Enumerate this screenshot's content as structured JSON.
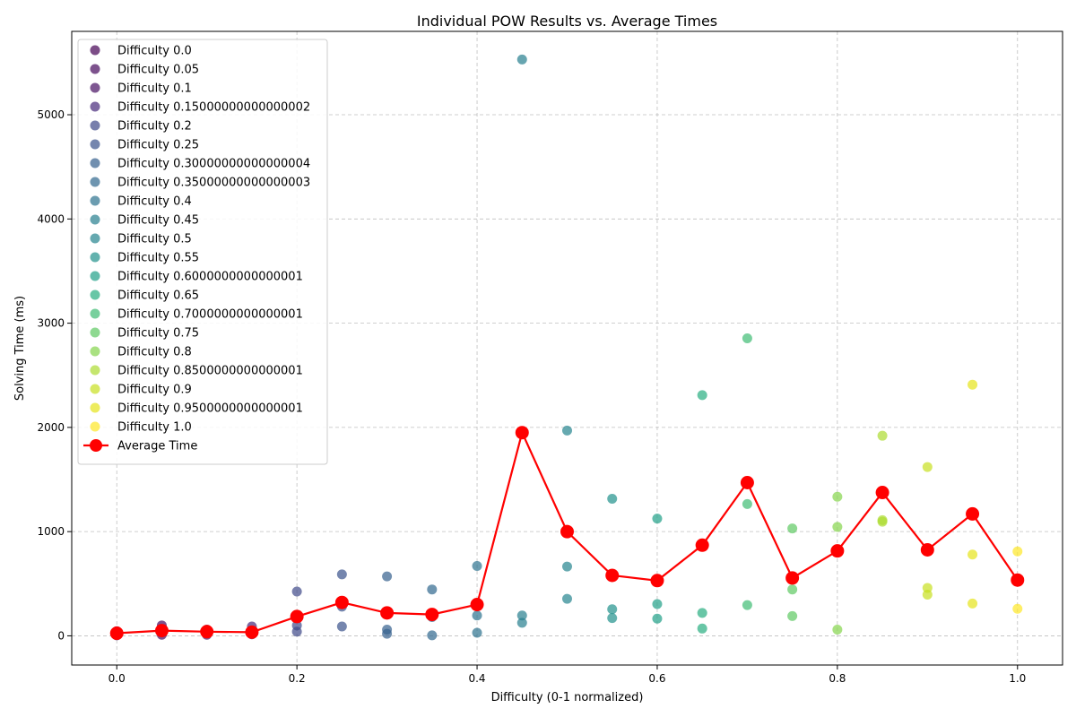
{
  "chart_data": {
    "type": "scatter",
    "title": "Individual POW Results vs. Average Times",
    "xlabel": "Difficulty (0-1 normalized)",
    "ylabel": "Solving Time (ms)",
    "xlim": [
      -0.05,
      1.05
    ],
    "ylim": [
      -280,
      5800
    ],
    "x_ticks": [
      0.0,
      0.2,
      0.4,
      0.6,
      0.8,
      1.0
    ],
    "x_tick_labels": [
      "0.0",
      "0.2",
      "0.4",
      "0.6",
      "0.8",
      "1.0"
    ],
    "y_ticks": [
      0,
      1000,
      2000,
      3000,
      4000,
      5000
    ],
    "y_tick_labels": [
      "0",
      "1000",
      "2000",
      "3000",
      "4000",
      "5000"
    ],
    "grid": true,
    "legend_position": "upper-left",
    "series": [
      {
        "name": "Difficulty 0.0",
        "color": "#440154",
        "x": 0.0,
        "values": [
          5,
          20,
          45
        ]
      },
      {
        "name": "Difficulty 0.05",
        "color": "#46085c",
        "x": 0.05,
        "values": [
          10,
          40,
          100
        ]
      },
      {
        "name": "Difficulty 0.1",
        "color": "#471063",
        "x": 0.1,
        "values": [
          10,
          45,
          60
        ]
      },
      {
        "name": "Difficulty 0.15000000000000002",
        "color": "#472a7a",
        "x": 0.15,
        "values": [
          15,
          30,
          90
        ]
      },
      {
        "name": "Difficulty 0.2",
        "color": "#3e4989",
        "x": 0.2,
        "values": [
          40,
          100,
          425
        ]
      },
      {
        "name": "Difficulty 0.25",
        "color": "#3b528b",
        "x": 0.25,
        "values": [
          90,
          280,
          590
        ]
      },
      {
        "name": "Difficulty 0.30000000000000004",
        "color": "#355f8d",
        "x": 0.3,
        "values": [
          20,
          60,
          570
        ]
      },
      {
        "name": "Difficulty 0.35000000000000003",
        "color": "#31688e",
        "x": 0.35,
        "values": [
          5,
          180,
          445
        ]
      },
      {
        "name": "Difficulty 0.4",
        "color": "#2c728e",
        "x": 0.4,
        "values": [
          30,
          195,
          670
        ]
      },
      {
        "name": "Difficulty 0.45",
        "color": "#277f8e",
        "x": 0.45,
        "values": [
          125,
          195,
          5530
        ]
      },
      {
        "name": "Difficulty 0.5",
        "color": "#25858e",
        "x": 0.5,
        "values": [
          355,
          665,
          1970
        ]
      },
      {
        "name": "Difficulty 0.55",
        "color": "#21918c",
        "x": 0.55,
        "values": [
          170,
          255,
          1315
        ]
      },
      {
        "name": "Difficulty 0.6000000000000001",
        "color": "#1fa088",
        "x": 0.6,
        "values": [
          165,
          305,
          1125
        ]
      },
      {
        "name": "Difficulty 0.65",
        "color": "#28ae80",
        "x": 0.65,
        "values": [
          70,
          220,
          2310
        ]
      },
      {
        "name": "Difficulty 0.7000000000000001",
        "color": "#3fbc73",
        "x": 0.7,
        "values": [
          295,
          1265,
          2855
        ]
      },
      {
        "name": "Difficulty 0.75",
        "color": "#5ec962",
        "x": 0.75,
        "values": [
          190,
          445,
          1030
        ]
      },
      {
        "name": "Difficulty 0.8",
        "color": "#84d44b",
        "x": 0.8,
        "values": [
          60,
          1045,
          1335
        ]
      },
      {
        "name": "Difficulty 0.8500000000000001",
        "color": "#addc30",
        "x": 0.85,
        "values": [
          1095,
          1110,
          1920
        ]
      },
      {
        "name": "Difficulty 0.9",
        "color": "#c8e020",
        "x": 0.9,
        "values": [
          395,
          460,
          1620
        ]
      },
      {
        "name": "Difficulty 0.9500000000000001",
        "color": "#e5e419",
        "x": 0.95,
        "values": [
          310,
          780,
          2410
        ]
      },
      {
        "name": "Difficulty 1.0",
        "color": "#fde725",
        "x": 1.0,
        "values": [
          260,
          810
        ]
      }
    ],
    "average": {
      "name": "Average Time",
      "color": "#ff0000",
      "x": [
        0.0,
        0.05,
        0.1,
        0.15,
        0.2,
        0.25,
        0.3,
        0.35,
        0.4,
        0.45,
        0.5,
        0.55,
        0.6,
        0.65,
        0.7,
        0.75,
        0.8,
        0.85,
        0.9,
        0.95,
        1.0
      ],
      "y": [
        25,
        50,
        40,
        35,
        185,
        320,
        220,
        205,
        300,
        1950,
        1000,
        580,
        530,
        870,
        1470,
        555,
        815,
        1375,
        825,
        1170,
        535
      ]
    }
  }
}
